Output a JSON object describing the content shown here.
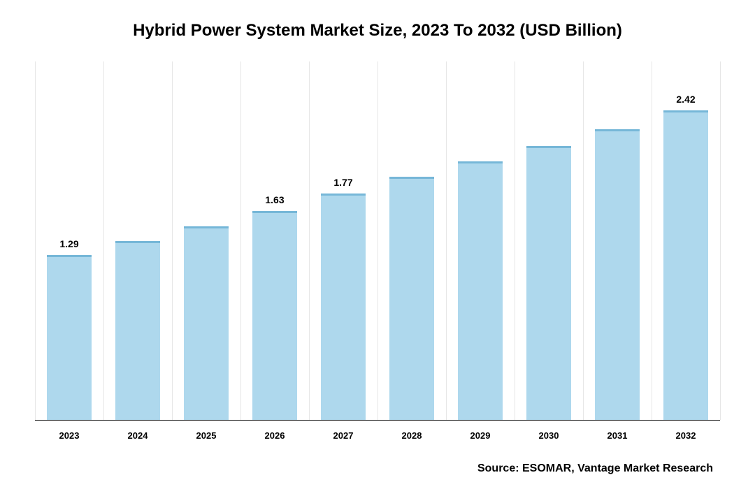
{
  "chart": {
    "type": "bar",
    "title": "Hybrid Power System Market Size, 2023 To 2032 (USD Billion)",
    "title_fontsize": 24,
    "title_color": "#000000",
    "categories": [
      "2023",
      "2024",
      "2025",
      "2026",
      "2027",
      "2028",
      "2029",
      "2030",
      "2031",
      "2032"
    ],
    "values": [
      1.29,
      1.4,
      1.51,
      1.63,
      1.77,
      1.9,
      2.02,
      2.14,
      2.27,
      2.42
    ],
    "shown_value_labels": {
      "0": "1.29",
      "3": "1.63",
      "4": "1.77",
      "9": "2.42"
    },
    "value_label_fontsize": 14,
    "value_label_color": "#000000",
    "bar_color": "#aed8ed",
    "bar_border_top_color": "#76b7d8",
    "bar_border_top_width": 3,
    "bar_width_pct": 65,
    "ylim": [
      0,
      2.8
    ],
    "background_color": "#ffffff",
    "grid": {
      "vertical_lines": 10,
      "color": "#e6e6e6",
      "width": 1
    },
    "x_label_fontsize": 13,
    "x_label_fontweight": "bold",
    "x_label_color": "#000000",
    "source": "Source: ESOMAR, Vantage Market Research",
    "source_fontsize": 16,
    "source_color": "#000000"
  }
}
